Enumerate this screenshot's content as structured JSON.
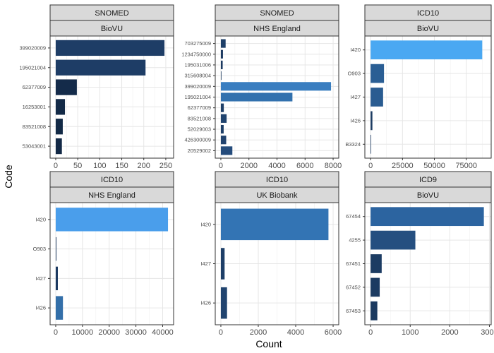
{
  "figure": {
    "xlabel": "Count",
    "ylabel": "Code"
  },
  "chart_data": [
    {
      "type": "bar",
      "orientation": "horizontal",
      "facet": [
        "SNOMED",
        "BioVU"
      ],
      "categories": [
        "399020009",
        "195021004",
        "62377009",
        "16253001",
        "83521008",
        "53043001"
      ],
      "values": [
        247,
        204,
        48,
        21,
        16,
        14
      ],
      "colors": [
        "#1e3d66",
        "#1e3d66",
        "#142b4a",
        "#132a47",
        "#132a46",
        "#132946"
      ],
      "xlim": [
        0,
        255
      ],
      "xticks": [
        0,
        50,
        100,
        150,
        200,
        250
      ],
      "grid": true
    },
    {
      "type": "bar",
      "orientation": "horizontal",
      "facet": [
        "SNOMED",
        "NHS England"
      ],
      "categories": [
        "703275009",
        "1234750000",
        "195031006",
        "315608004",
        "399020009",
        "195021004",
        "62377009",
        "83521008",
        "52029003",
        "426300009",
        "20529002"
      ],
      "values": [
        340,
        150,
        130,
        40,
        7850,
        5100,
        210,
        410,
        200,
        380,
        820
      ],
      "colors": [
        "#1e3f68",
        "#1c3a61",
        "#1c3a61",
        "#1a375c",
        "#3a7ec0",
        "#3271ae",
        "#1e3f68",
        "#21446f",
        "#1e3f68",
        "#21436f",
        "#254c7c"
      ],
      "xlim": [
        0,
        8000
      ],
      "xticks": [
        0,
        2000,
        4000,
        6000,
        8000
      ],
      "grid": true
    },
    {
      "type": "bar",
      "orientation": "horizontal",
      "facet": [
        "ICD10",
        "BioVU"
      ],
      "categories": [
        "I420",
        "O903",
        "I427",
        "I426",
        "B3324"
      ],
      "values": [
        87500,
        10500,
        9800,
        1400,
        400
      ],
      "colors": [
        "#4aa8f2",
        "#2a5e94",
        "#2a5c91",
        "#1c3c63",
        "#1b3a60"
      ],
      "xlim": [
        0,
        90000
      ],
      "xticks": [
        0,
        25000,
        50000,
        75000
      ],
      "grid": true
    },
    {
      "type": "bar",
      "orientation": "horizontal",
      "facet": [
        "ICD10",
        "NHS England"
      ],
      "categories": [
        "I420",
        "O903",
        "I427",
        "I426"
      ],
      "values": [
        42000,
        250,
        800,
        2700
      ],
      "colors": [
        "#4a9eeb",
        "#1a375c",
        "#1c3a61",
        "#336fa9"
      ],
      "xlim": [
        0,
        42000
      ],
      "xticks": [
        0,
        10000,
        20000,
        30000,
        40000
      ],
      "grid": true
    },
    {
      "type": "bar",
      "orientation": "horizontal",
      "facet": [
        "ICD10",
        "UK Biobank"
      ],
      "categories": [
        "I420",
        "I427",
        "I426"
      ],
      "values": [
        5750,
        200,
        330
      ],
      "colors": [
        "#3374b4",
        "#1e3f68",
        "#21446f"
      ],
      "xlim": [
        0,
        6000
      ],
      "xticks": [
        0,
        2000,
        4000,
        6000
      ],
      "grid": true
    },
    {
      "type": "bar",
      "orientation": "horizontal",
      "facet": [
        "ICD9",
        "BioVU"
      ],
      "categories": [
        "67454",
        "4255",
        "67451",
        "67452",
        "67453"
      ],
      "values": [
        2860,
        1130,
        280,
        230,
        170
      ],
      "colors": [
        "#2c64a0",
        "#254f80",
        "#1c3c63",
        "#1c3b62",
        "#1b3a60"
      ],
      "xlim": [
        0,
        2900
      ],
      "xticks": [
        0,
        1000,
        2000,
        3000
      ],
      "xtick_labels": [
        "0",
        "1000",
        "2000",
        "3000"
      ],
      "grid": true
    }
  ]
}
